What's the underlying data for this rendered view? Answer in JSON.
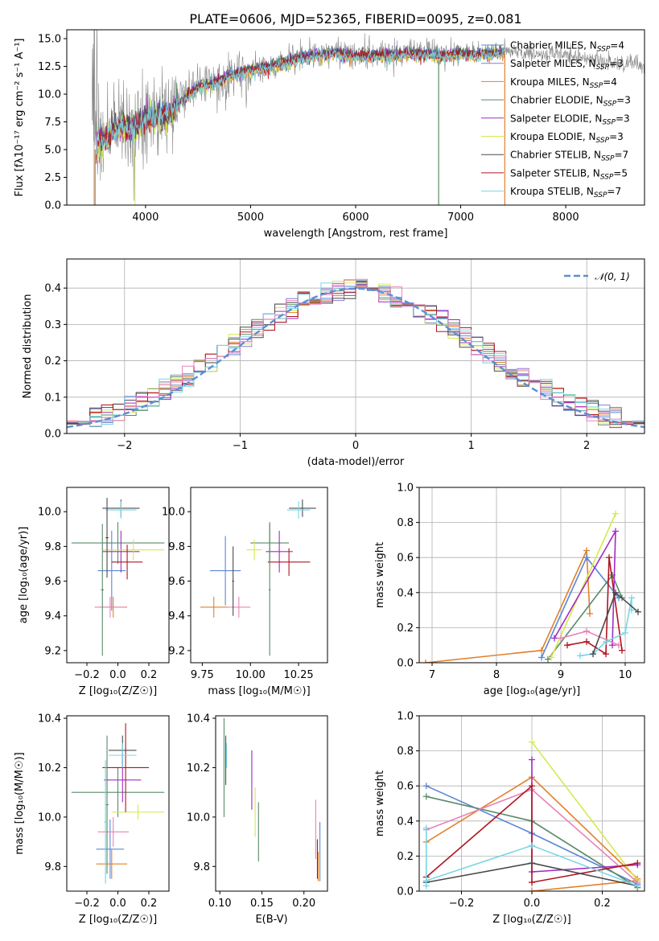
{
  "colors": {
    "Chabrier MILES": "#5b87d6",
    "Salpeter MILES": "#8c7bd0",
    "Kroupa MILES": "#e2802c",
    "Chabrier ELODIE": "#5a8a6a",
    "Salpeter ELODIE": "#a22bc4",
    "Kroupa ELODIE": "#d6e84f",
    "Chabrier STELIB": "#4a4a4a",
    "Salpeter STELIB": "#b01420",
    "Kroupa STELIB": "#78d6e6",
    "pink": "#e883b8",
    "gaussian": "#5b8fd6",
    "data": "#888888"
  },
  "chart_data": [
    {
      "type": "line",
      "id": "spectrum",
      "title": "PLATE=0606, MJD=52365, FIBERID=0095, z=0.081",
      "xlabel": "wavelength [Angstrom, rest frame]",
      "ylabel": "Flux [fλ10⁻¹⁷ erg cm⁻² s⁻¹ A⁻¹]",
      "xlim": [
        3250,
        8750
      ],
      "ylim": [
        0,
        15.8
      ],
      "xticks": [
        "4000",
        "5000",
        "6000",
        "7000",
        "8000"
      ],
      "yticks": [
        "0.0",
        "2.5",
        "5.0",
        "7.5",
        "10.0",
        "12.5",
        "15.0"
      ],
      "grid": false,
      "legend_position": "right",
      "legend": [
        "Chabrier MILES, N_SSP=4",
        "Salpeter MILES, N_SSP=3",
        "Kroupa MILES, N_SSP=4",
        "Chabrier ELODIE, N_SSP=3",
        "Salpeter ELODIE, N_SSP=3",
        "Kroupa ELODIE, N_SSP=3",
        "Chabrier STELIB, N_SSP=7",
        "Salpeter STELIB, N_SSP=5",
        "Kroupa STELIB, N_SSP=7"
      ],
      "continuum": [
        [
          3500,
          5.5
        ],
        [
          3600,
          6.0
        ],
        [
          3700,
          6.8
        ],
        [
          3800,
          7.2
        ],
        [
          3900,
          7.0
        ],
        [
          4000,
          8.0
        ],
        [
          4100,
          8.2
        ],
        [
          4200,
          8.0
        ],
        [
          4300,
          9.0
        ],
        [
          4400,
          10.0
        ],
        [
          4500,
          10.8
        ],
        [
          4600,
          11.0
        ],
        [
          4700,
          11.3
        ],
        [
          4800,
          11.8
        ],
        [
          4900,
          12.0
        ],
        [
          5000,
          12.3
        ],
        [
          5200,
          12.6
        ],
        [
          5400,
          13.2
        ],
        [
          5600,
          13.6
        ],
        [
          5800,
          13.8
        ],
        [
          6000,
          13.5
        ],
        [
          6200,
          13.6
        ],
        [
          6400,
          13.7
        ],
        [
          6600,
          13.8
        ],
        [
          6800,
          13.6
        ],
        [
          7000,
          13.7
        ],
        [
          7200,
          13.7
        ],
        [
          7400,
          13.9
        ],
        [
          7600,
          13.8
        ],
        [
          7800,
          13.6
        ],
        [
          8000,
          13.4
        ],
        [
          8200,
          13.3
        ],
        [
          8400,
          12.9
        ],
        [
          8600,
          12.8
        ],
        [
          8750,
          12.7
        ]
      ],
      "model_end_wavelength": 7420
    },
    {
      "type": "line",
      "id": "residuals",
      "xlabel": "(data-model)/error",
      "ylabel": "Normed distribution",
      "xlim": [
        -2.5,
        2.5
      ],
      "ylim": [
        0,
        0.48
      ],
      "xticks": [
        "−2",
        "−1",
        "0",
        "1",
        "2"
      ],
      "yticks": [
        "0.0",
        "0.1",
        "0.2",
        "0.3",
        "0.4"
      ],
      "grid": true,
      "legend": [
        "𝒩(0, 1)"
      ],
      "legend_position": "top-right",
      "bin_width": 0.1,
      "histogram_series": 9
    },
    {
      "type": "scatter",
      "id": "age-vs-Z",
      "xlabel": "Z [log₁₀(Z/Z☉)]",
      "ylabel": "age  [log₁₀(age/yr)]",
      "xlim": [
        -0.33,
        0.33
      ],
      "ylim": [
        9.13,
        10.14
      ],
      "xticks": [
        "−0.2",
        "0.0",
        "0.2"
      ],
      "yticks": [
        "9.2",
        "9.4",
        "9.6",
        "9.8",
        "10.0"
      ],
      "points": [
        {
          "x": -0.04,
          "xe": 0.09,
          "y": 9.66,
          "ye": 0.23,
          "c": "Chabrier MILES"
        },
        {
          "x": -0.03,
          "xe": 0.09,
          "y": 9.45,
          "ye": 0.06,
          "c": "Kroupa MILES"
        },
        {
          "x": 0.0,
          "xe": 0.3,
          "y": 9.82,
          "ye": 0.12,
          "c": "Chabrier ELODIE"
        },
        {
          "x": 0.02,
          "xe": 0.12,
          "y": 9.77,
          "ye": 0.12,
          "c": "Salpeter ELODIE"
        },
        {
          "x": 0.1,
          "xe": 0.2,
          "y": 9.78,
          "ye": 0.06,
          "c": "Kroupa ELODIE"
        },
        {
          "x": 0.02,
          "xe": 0.12,
          "y": 10.02,
          "ye": 0.05,
          "c": "Chabrier STELIB"
        },
        {
          "x": 0.06,
          "xe": 0.1,
          "y": 9.71,
          "ye": 0.1,
          "c": "Salpeter STELIB"
        },
        {
          "x": 0.02,
          "xe": 0.1,
          "y": 10.01,
          "ye": 0.05,
          "c": "Kroupa STELIB"
        },
        {
          "x": -0.05,
          "xe": 0.1,
          "y": 9.45,
          "ye": 0.06,
          "c": "pink"
        },
        {
          "x": -0.1,
          "xe": 0.01,
          "y": 9.55,
          "ye": 0.38,
          "c": "Chabrier ELODIE"
        },
        {
          "x": -0.07,
          "xe": 0.01,
          "y": 9.85,
          "ye": 0.23,
          "c": "Chabrier STELIB"
        }
      ]
    },
    {
      "type": "scatter",
      "id": "age-vs-mass",
      "xlabel": "mass [log₁₀(M/M☉)]",
      "ylabel": "",
      "xlim": [
        9.69,
        10.4
      ],
      "ylim": [
        9.13,
        10.14
      ],
      "xticks": [
        "9.75",
        "10.00",
        "10.25"
      ],
      "yticks": [
        "9.2",
        "9.4",
        "9.6",
        "9.8",
        "10.0"
      ],
      "points": [
        {
          "x": 9.87,
          "xe": 0.08,
          "y": 9.66,
          "ye": 0.2,
          "c": "Chabrier MILES"
        },
        {
          "x": 9.81,
          "xe": 0.07,
          "y": 9.45,
          "ye": 0.06,
          "c": "Kroupa MILES"
        },
        {
          "x": 10.1,
          "xe": 0.1,
          "y": 9.82,
          "ye": 0.12,
          "c": "Chabrier ELODIE"
        },
        {
          "x": 10.15,
          "xe": 0.07,
          "y": 9.77,
          "ye": 0.12,
          "c": "Salpeter ELODIE"
        },
        {
          "x": 10.02,
          "xe": 0.04,
          "y": 9.78,
          "ye": 0.06,
          "c": "Kroupa ELODIE"
        },
        {
          "x": 10.27,
          "xe": 0.07,
          "y": 10.02,
          "ye": 0.05,
          "c": "Chabrier STELIB"
        },
        {
          "x": 10.2,
          "xe": 0.11,
          "y": 9.71,
          "ye": 0.08,
          "c": "Salpeter STELIB"
        },
        {
          "x": 10.25,
          "xe": 0.06,
          "y": 10.01,
          "ye": 0.05,
          "c": "Kroupa STELIB"
        },
        {
          "x": 9.94,
          "xe": 0.06,
          "y": 9.45,
          "ye": 0.06,
          "c": "pink"
        },
        {
          "x": 10.1,
          "xe": 0.005,
          "y": 9.55,
          "ye": 0.38,
          "c": "Chabrier ELODIE"
        },
        {
          "x": 9.91,
          "xe": 0.005,
          "y": 9.6,
          "ye": 0.2,
          "c": "Chabrier STELIB"
        }
      ]
    },
    {
      "type": "line",
      "id": "weight-vs-age",
      "xlabel": "age  [log₁₀(age/yr)]",
      "ylabel": "mass weight",
      "xlim": [
        6.8,
        10.3
      ],
      "ylim": [
        0,
        1.0
      ],
      "xticks": [
        "7",
        "8",
        "9",
        "10"
      ],
      "yticks": [
        "0.0",
        "0.2",
        "0.4",
        "0.6",
        "0.8",
        "1.0"
      ],
      "grid": true,
      "series": [
        {
          "c": "Kroupa MILES",
          "x": [
            6.9,
            8.7,
            9.4,
            9.45
          ],
          "y": [
            0.0,
            0.07,
            0.64,
            0.28
          ]
        },
        {
          "c": "Chabrier MILES",
          "x": [
            8.7,
            9.4,
            9.9
          ],
          "y": [
            0.03,
            0.6,
            0.37
          ]
        },
        {
          "c": "Chabrier ELODIE",
          "x": [
            8.8,
            9.8,
            9.95
          ],
          "y": [
            0.02,
            0.5,
            0.37
          ]
        },
        {
          "c": "Kroupa ELODIE",
          "x": [
            8.85,
            9.85
          ],
          "y": [
            0.03,
            0.85
          ]
        },
        {
          "c": "Salpeter ELODIE",
          "x": [
            8.9,
            9.85,
            9.8
          ],
          "y": [
            0.14,
            0.75,
            0.1
          ]
        },
        {
          "c": "pink",
          "x": [
            9.0,
            9.4,
            9.9
          ],
          "y": [
            0.14,
            0.18,
            0.1
          ]
        },
        {
          "c": "Salpeter STELIB",
          "x": [
            9.1,
            9.4,
            9.7,
            9.75,
            9.95
          ],
          "y": [
            0.1,
            0.12,
            0.05,
            0.6,
            0.07
          ]
        },
        {
          "c": "Kroupa STELIB",
          "x": [
            9.3,
            9.5,
            9.7,
            10.0,
            10.1,
            10.1
          ],
          "y": [
            0.04,
            0.05,
            0.12,
            0.17,
            0.37,
            0.3
          ]
        },
        {
          "c": "Chabrier STELIB",
          "x": [
            9.5,
            9.85,
            10.2
          ],
          "y": [
            0.05,
            0.4,
            0.29
          ]
        }
      ]
    },
    {
      "type": "scatter",
      "id": "mass-vs-Z",
      "xlabel": "Z [log₁₀(Z/Z☉)]",
      "ylabel": "mass [log₁₀(M/M☉)]",
      "xlim": [
        -0.33,
        0.33
      ],
      "ylim": [
        9.7,
        10.41
      ],
      "xticks": [
        "−0.2",
        "0.0",
        "0.2"
      ],
      "yticks": [
        "9.8",
        "10.0",
        "10.2",
        "10.4"
      ],
      "points": [
        {
          "x": -0.05,
          "xe": 0.09,
          "y": 9.87,
          "ye": 0.12,
          "c": "Chabrier MILES"
        },
        {
          "x": -0.04,
          "xe": 0.1,
          "y": 9.81,
          "ye": 0.06,
          "c": "Kroupa MILES"
        },
        {
          "x": 0.0,
          "xe": 0.3,
          "y": 10.1,
          "ye": 0.1,
          "c": "Chabrier ELODIE"
        },
        {
          "x": 0.03,
          "xe": 0.12,
          "y": 10.15,
          "ye": 0.09,
          "c": "Salpeter ELODIE"
        },
        {
          "x": 0.13,
          "xe": 0.17,
          "y": 10.02,
          "ye": 0.03,
          "c": "Kroupa ELODIE"
        },
        {
          "x": 0.03,
          "xe": 0.09,
          "y": 10.27,
          "ye": 0.06,
          "c": "Chabrier STELIB"
        },
        {
          "x": 0.05,
          "xe": 0.15,
          "y": 10.2,
          "ye": 0.18,
          "c": "Salpeter STELIB"
        },
        {
          "x": 0.03,
          "xe": 0.09,
          "y": 10.25,
          "ye": 0.05,
          "c": "Kroupa STELIB"
        },
        {
          "x": -0.03,
          "xe": 0.1,
          "y": 9.94,
          "ye": 0.06,
          "c": "pink"
        },
        {
          "x": -0.07,
          "xe": 0.01,
          "y": 10.05,
          "ye": 0.28,
          "c": "Chabrier ELODIE"
        },
        {
          "x": -0.08,
          "xe": 0.01,
          "y": 9.98,
          "ye": 0.25,
          "c": "Kroupa STELIB"
        }
      ]
    },
    {
      "type": "scatter",
      "id": "mass-vs-ebv",
      "xlabel": "E(B-V)",
      "ylabel": "",
      "xlim": [
        0.095,
        0.228
      ],
      "ylim": [
        9.7,
        10.41
      ],
      "xticks": [
        "0.10",
        "0.15",
        "0.20"
      ],
      "yticks": [
        "9.8",
        "10.0",
        "10.2",
        "10.4"
      ],
      "points": [
        {
          "x": 0.105,
          "ye": 0.2,
          "y": 10.2,
          "c": "Chabrier ELODIE"
        },
        {
          "x": 0.107,
          "ye": 0.1,
          "y": 10.23,
          "c": "Chabrier STELIB"
        },
        {
          "x": 0.108,
          "ye": 0.05,
          "y": 10.25,
          "c": "Kroupa STELIB"
        },
        {
          "x": 0.138,
          "ye": 0.12,
          "y": 10.15,
          "c": "Salpeter ELODIE"
        },
        {
          "x": 0.142,
          "ye": 0.1,
          "y": 10.02,
          "c": "Kroupa ELODIE"
        },
        {
          "x": 0.146,
          "ye": 0.12,
          "y": 9.94,
          "c": "Chabrier ELODIE"
        },
        {
          "x": 0.214,
          "ye": 0.12,
          "y": 9.95,
          "c": "pink"
        },
        {
          "x": 0.216,
          "ye": 0.08,
          "y": 9.83,
          "c": "Salpeter STELIB"
        },
        {
          "x": 0.217,
          "ye": 0.06,
          "y": 9.8,
          "c": "Kroupa MILES"
        },
        {
          "x": 0.219,
          "ye": 0.12,
          "y": 9.86,
          "c": "Chabrier MILES"
        }
      ]
    },
    {
      "type": "line",
      "id": "weight-vs-Z",
      "xlabel": "Z [log₁₀(Z/Z☉)]",
      "ylabel": "mass weight",
      "xlim": [
        -0.32,
        0.32
      ],
      "ylim": [
        0,
        1.0
      ],
      "xticks": [
        "−0.2",
        "0.0",
        "0.2"
      ],
      "yticks": [
        "0.0",
        "0.2",
        "0.4",
        "0.6",
        "0.8",
        "1.0"
      ],
      "grid": true,
      "series": [
        {
          "c": "Chabrier MILES",
          "x": [
            -0.3,
            0.0,
            0.3
          ],
          "y": [
            0.6,
            0.33,
            0.04
          ]
        },
        {
          "c": "Kroupa MILES",
          "x": [
            -0.3,
            0.0,
            0.3
          ],
          "y": [
            0.28,
            0.65,
            0.07
          ]
        },
        {
          "c": "Kroupa MILES",
          "x": [
            0.0,
            0.3
          ],
          "y": [
            0.0,
            0.06
          ]
        },
        {
          "c": "Chabrier ELODIE",
          "x": [
            -0.3,
            0.0,
            0.3
          ],
          "y": [
            0.54,
            0.4,
            0.02
          ]
        },
        {
          "c": "Salpeter ELODIE",
          "x": [
            0.0,
            0.0,
            0.3
          ],
          "y": [
            0.75,
            0.11,
            0.15
          ]
        },
        {
          "c": "Kroupa ELODIE",
          "x": [
            0.0,
            0.3
          ],
          "y": [
            0.85,
            0.06
          ]
        },
        {
          "c": "pink",
          "x": [
            -0.3,
            0.0,
            0.3
          ],
          "y": [
            0.35,
            0.58,
            0.05
          ]
        },
        {
          "c": "Salpeter STELIB",
          "x": [
            -0.3,
            0.0,
            0.0,
            0.3
          ],
          "y": [
            0.08,
            0.6,
            0.05,
            0.16
          ]
        },
        {
          "c": "Chabrier STELIB",
          "x": [
            -0.3,
            0.0,
            0.3
          ],
          "y": [
            0.05,
            0.16,
            0.03
          ]
        },
        {
          "c": "Kroupa STELIB",
          "x": [
            -0.3,
            0.0,
            0.3
          ],
          "y": [
            0.06,
            0.26,
            0.03
          ]
        },
        {
          "c": "Kroupa STELIB",
          "x": [
            -0.3,
            -0.3
          ],
          "y": [
            0.36,
            0.03
          ]
        }
      ]
    }
  ]
}
